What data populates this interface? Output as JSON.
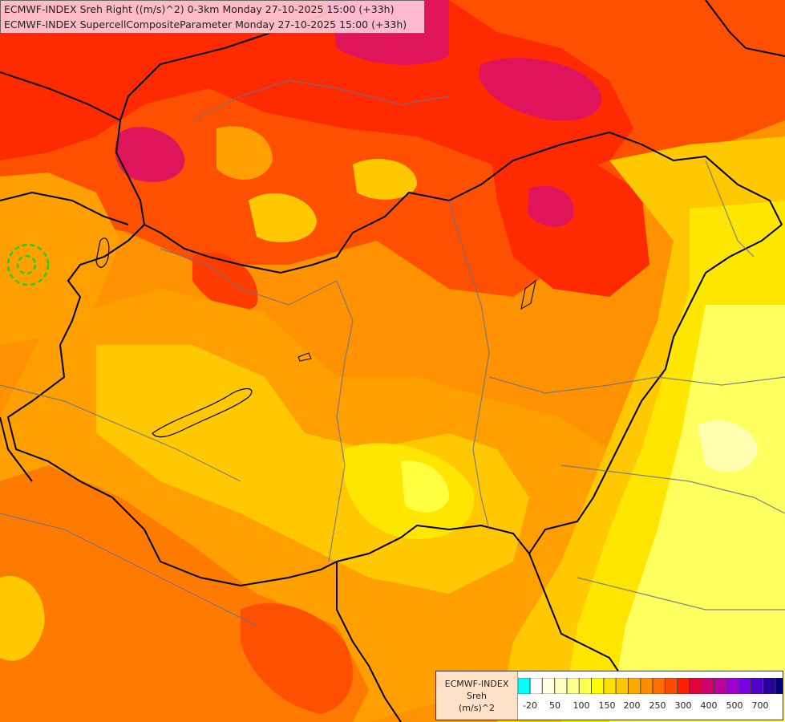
{
  "header": {
    "line1": "ECMWF-INDEX Sreh Right ((m/s)^2) 0-3km Monday 27-10-2025 15:00 (+33h)",
    "line2": "ECMWF-INDEX SupercellCompositeParameter Monday 27-10-2025 15:00 (+33h)"
  },
  "legend": {
    "model": "ECMWF-INDEX",
    "variable": "Sreh",
    "unit": "(m/s)^2",
    "swatch_colors": [
      "#00ffff",
      "#ffffff",
      "#ffffe0",
      "#ffffc0",
      "#ffff90",
      "#ffff50",
      "#ffff00",
      "#ffe000",
      "#ffc800",
      "#ffa800",
      "#ff8c00",
      "#ff6e00",
      "#ff4b00",
      "#ff1e00",
      "#e6003c",
      "#d2006e",
      "#be00a0",
      "#a000d2",
      "#7800e6",
      "#5000c8",
      "#2800a0",
      "#000080"
    ],
    "tick_labels": [
      "-20",
      "50",
      "100",
      "150",
      "200",
      "250",
      "300",
      "400",
      "500",
      "700"
    ]
  },
  "field_colors": {
    "deep_red": "#e0145a",
    "red": "#ff2a00",
    "red_orange": "#ff5000",
    "orange": "#ff7a00",
    "amber": "#ffa000",
    "gold": "#ffc800",
    "yellow": "#ffe600",
    "light_yellow": "#ffff60",
    "pale": "#ffffb0"
  }
}
